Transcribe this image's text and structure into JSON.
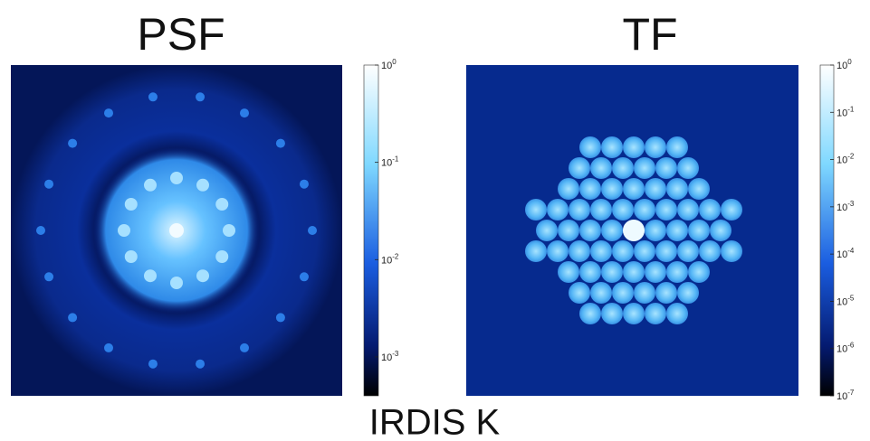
{
  "panels": [
    {
      "title": "PSF",
      "colorbar": {
        "range": [
          -3.4,
          0
        ],
        "ticks": [
          {
            "value": 0,
            "base": "10",
            "exponent": "0"
          },
          {
            "value": -1,
            "base": "10",
            "exponent": "-1"
          },
          {
            "value": -2,
            "base": "10",
            "exponent": "-2"
          },
          {
            "value": -3,
            "base": "10",
            "exponent": "-3"
          }
        ]
      }
    },
    {
      "title": "TF",
      "colorbar": {
        "range": [
          -7,
          0
        ],
        "ticks": [
          {
            "value": 0,
            "base": "10",
            "exponent": "0"
          },
          {
            "value": -1,
            "base": "10",
            "exponent": "-1"
          },
          {
            "value": -2,
            "base": "10",
            "exponent": "-2"
          },
          {
            "value": -3,
            "base": "10",
            "exponent": "-3"
          },
          {
            "value": -4,
            "base": "10",
            "exponent": "-4"
          },
          {
            "value": -5,
            "base": "10",
            "exponent": "-5"
          },
          {
            "value": -6,
            "base": "10",
            "exponent": "-6"
          },
          {
            "value": -7,
            "base": "10",
            "exponent": "-7"
          }
        ]
      }
    }
  ],
  "caption": "IRDIS K"
}
